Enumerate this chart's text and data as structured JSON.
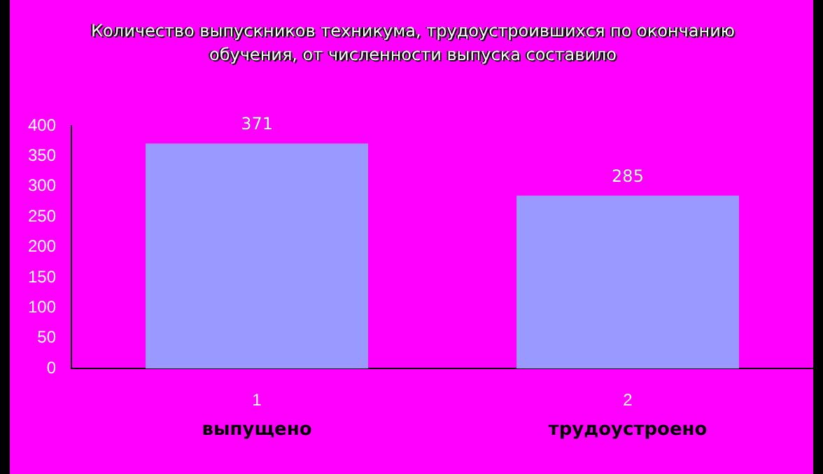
{
  "chart_data": {
    "type": "bar",
    "title": "Количество выпускников техникума, трудоустроившихся по окончанию обучения, от численности выпуска составило",
    "categories": [
      "1",
      "2"
    ],
    "values": [
      371,
      285
    ],
    "color": "#9999ff",
    "data_labels": true,
    "ylim": [
      0,
      400
    ],
    "yticks": [
      0,
      50,
      100,
      150,
      200,
      250,
      300,
      350,
      400
    ],
    "grid": false,
    "legend": false,
    "annotations": [
      "выпущено",
      "трудоустроено"
    ]
  }
}
